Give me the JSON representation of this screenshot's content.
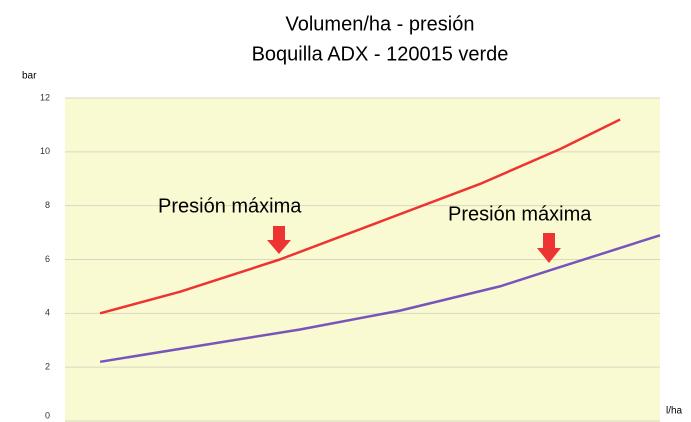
{
  "chart_data": {
    "type": "line",
    "title": [
      "Volumen/ha - presión",
      "Boquilla ADX - 120015 verde"
    ],
    "y_label": "bar",
    "x_label": "l/ha",
    "annotations": [
      "Presión máxima",
      "Presión máxima"
    ],
    "xlim": [
      0,
      100
    ],
    "ylim": [
      0,
      12
    ],
    "yticks": [
      0,
      2,
      4,
      6,
      8,
      10,
      12
    ],
    "grid": true,
    "series": [
      {
        "color": "#ee3333",
        "x": [
          5.9,
          19.3,
          36.1,
          52.9,
          69.7,
          83.2,
          93.3
        ],
        "values": [
          4.0,
          4.8,
          6.0,
          7.4,
          8.8,
          10.1,
          11.2
        ]
      },
      {
        "color": "#7755bb",
        "x": [
          5.9,
          22.7,
          39.5,
          56.3,
          73.1,
          81.5,
          100
        ],
        "values": [
          2.2,
          2.8,
          3.4,
          4.1,
          5.0,
          5.6,
          6.9
        ]
      }
    ]
  }
}
